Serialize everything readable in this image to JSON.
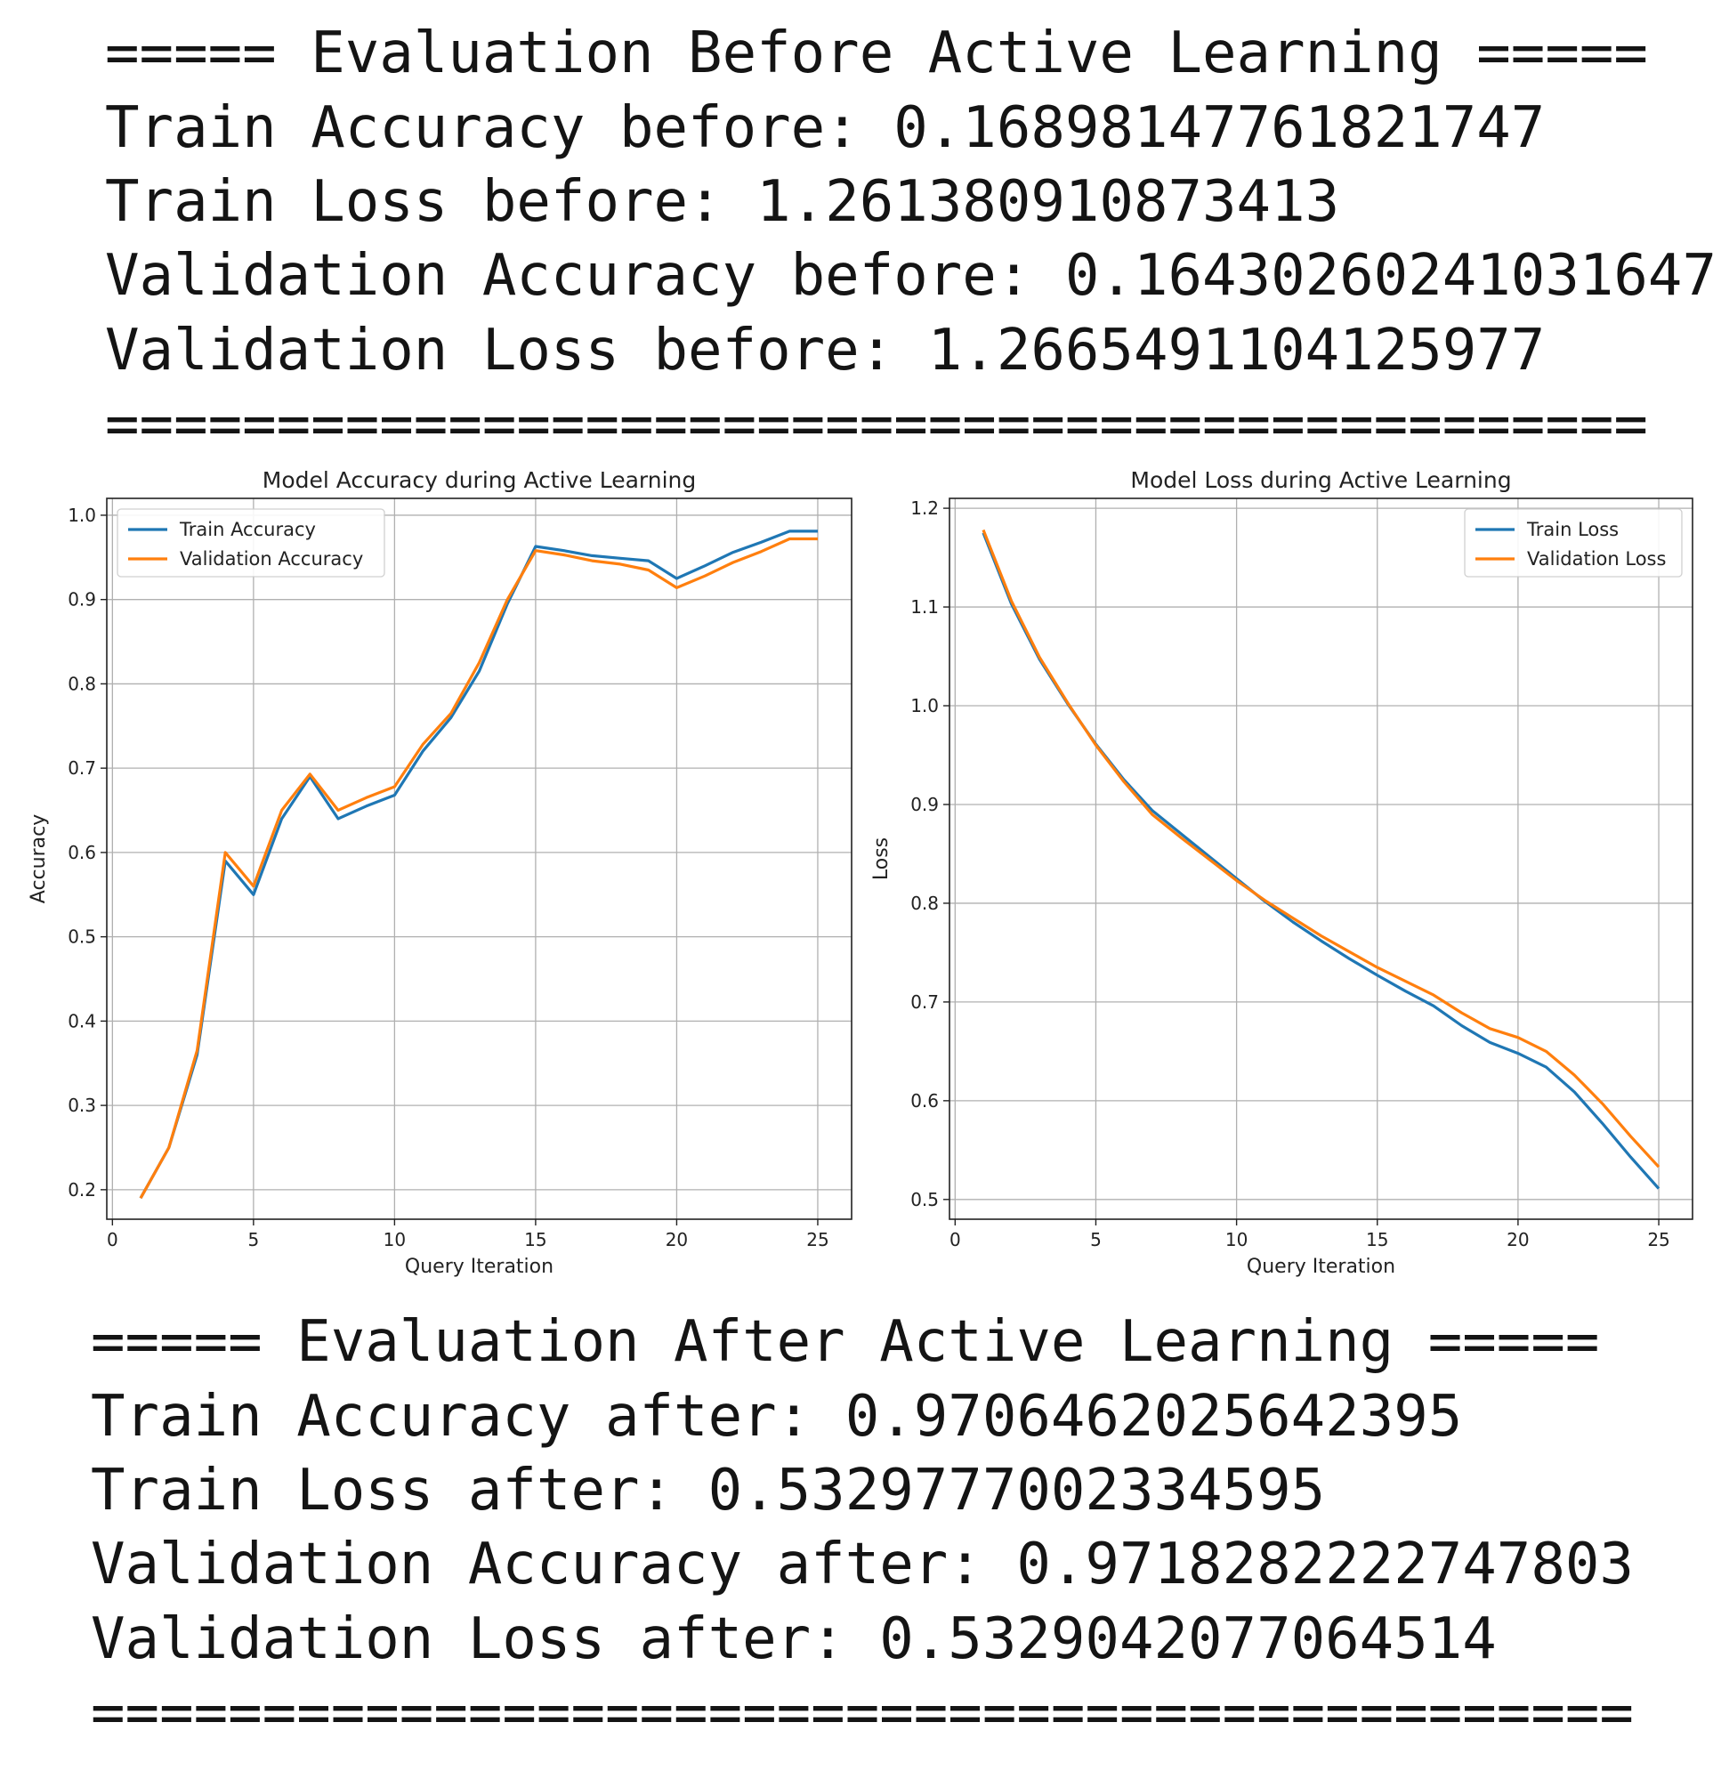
{
  "before": {
    "header": "===== Evaluation Before Active Learning =====",
    "train_acc": "Train Accuracy before: 0.1689814776182174​7",
    "train_loss": "Train Loss before: 1.261380910873413",
    "val_acc": "Validation Accuracy before: 0.1643026024103164​7",
    "val_loss": "Validation Loss before: 1.266549110412597​7",
    "footer": "============================================="
  },
  "after": {
    "header": "===== Evaluation After Active Learning =====",
    "train_acc": "Train Accuracy after: 0.9706462025642395",
    "train_loss": "Train Loss after: 0.532977700233459​5",
    "val_acc": "Validation Accuracy after: 0.9718282222747803",
    "val_loss": "Validation Loss after: 0.5329042077064514",
    "footer": "============================================="
  },
  "colors": {
    "train": "#1f77b4",
    "validation": "#ff7f0e",
    "grid": "#b0b0b0"
  },
  "chart_data": [
    {
      "type": "line",
      "title": "Model Accuracy during Active Learning",
      "xlabel": "Query Iteration",
      "ylabel": "Accuracy",
      "xlim": [
        -0.2,
        26.2
      ],
      "ylim": [
        0.165,
        1.02
      ],
      "xticks": [
        0,
        5,
        10,
        15,
        20,
        25
      ],
      "yticks": [
        0.2,
        0.3,
        0.4,
        0.5,
        0.6,
        0.7,
        0.8,
        0.9,
        1.0
      ],
      "ytick_labels": [
        "0.2",
        "0.3",
        "0.4",
        "0.5",
        "0.6",
        "0.7",
        "0.8",
        "0.9",
        "1.0"
      ],
      "grid": true,
      "legend": "upper left",
      "x": [
        1,
        2,
        3,
        4,
        5,
        6,
        7,
        8,
        9,
        10,
        11,
        12,
        13,
        14,
        15,
        16,
        17,
        18,
        19,
        20,
        21,
        22,
        23,
        24,
        25
      ],
      "series": [
        {
          "name": "Train Accuracy",
          "color": "train",
          "values": [
            0.19,
            0.25,
            0.36,
            0.59,
            0.55,
            0.64,
            0.69,
            0.64,
            0.655,
            0.668,
            0.72,
            0.76,
            0.815,
            0.895,
            0.963,
            0.958,
            0.952,
            0.949,
            0.946,
            0.925,
            0.94,
            0.956,
            0.968,
            0.981,
            0.981
          ]
        },
        {
          "name": "Validation Accuracy",
          "color": "validation",
          "values": [
            0.19,
            0.25,
            0.365,
            0.6,
            0.56,
            0.65,
            0.693,
            0.65,
            0.665,
            0.678,
            0.728,
            0.765,
            0.825,
            0.9,
            0.958,
            0.953,
            0.946,
            0.942,
            0.935,
            0.914,
            0.928,
            0.944,
            0.957,
            0.972,
            0.972
          ]
        }
      ]
    },
    {
      "type": "line",
      "title": "Model Loss during Active Learning",
      "xlabel": "Query Iteration",
      "ylabel": "Loss",
      "xlim": [
        -0.2,
        26.2
      ],
      "ylim": [
        0.48,
        1.21
      ],
      "xticks": [
        0,
        5,
        10,
        15,
        20,
        25
      ],
      "yticks": [
        0.5,
        0.6,
        0.7,
        0.8,
        0.9,
        1.0,
        1.1,
        1.2
      ],
      "ytick_labels": [
        "0.5",
        "0.6",
        "0.7",
        "0.8",
        "0.9",
        "1.0",
        "1.1",
        "1.2"
      ],
      "grid": true,
      "legend": "upper right",
      "x": [
        1,
        2,
        3,
        4,
        5,
        6,
        7,
        8,
        9,
        10,
        11,
        12,
        13,
        14,
        15,
        16,
        17,
        18,
        19,
        20,
        21,
        22,
        23,
        24,
        25
      ],
      "series": [
        {
          "name": "Train Loss",
          "color": "train",
          "values": [
            1.175,
            1.103,
            1.047,
            1.002,
            0.961,
            0.925,
            0.894,
            0.871,
            0.848,
            0.825,
            0.802,
            0.781,
            0.762,
            0.744,
            0.727,
            0.711,
            0.696,
            0.676,
            0.659,
            0.648,
            0.634,
            0.609,
            0.577,
            0.543,
            0.511
          ]
        },
        {
          "name": "Validation Loss",
          "color": "validation",
          "values": [
            1.178,
            1.106,
            1.049,
            1.003,
            0.96,
            0.923,
            0.89,
            0.867,
            0.845,
            0.823,
            0.803,
            0.785,
            0.767,
            0.751,
            0.735,
            0.721,
            0.707,
            0.689,
            0.673,
            0.664,
            0.65,
            0.626,
            0.597,
            0.564,
            0.533
          ]
        }
      ]
    }
  ]
}
